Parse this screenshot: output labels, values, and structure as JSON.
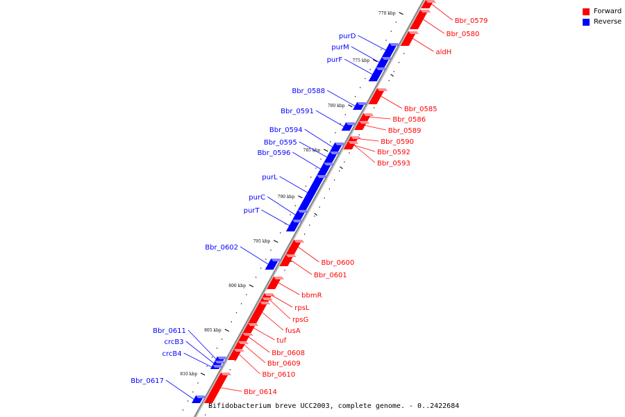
{
  "legend": {
    "items": [
      {
        "label": "Forward",
        "color": "#ff0000"
      },
      {
        "label": "Reverse",
        "color": "#0000ff"
      }
    ]
  },
  "colors": {
    "forward": "#ff0000",
    "reverse": "#0000ff",
    "backbone": "#8a8a8a"
  },
  "caption": "Bifidobacterium breve UCC2003, complete genome. - 0..2422684",
  "ticks": [
    {
      "label": "770 kbp",
      "kbp": 770
    },
    {
      "label": "775 kbp",
      "kbp": 775
    },
    {
      "label": "780 kbp",
      "kbp": 780
    },
    {
      "label": "785 kbp",
      "kbp": 785
    },
    {
      "label": "790 kbp",
      "kbp": 790
    },
    {
      "label": "795 kbp",
      "kbp": 795
    },
    {
      "label": "800 kbp",
      "kbp": 800
    },
    {
      "label": "805 kbp",
      "kbp": 805
    },
    {
      "label": "810 kbp",
      "kbp": 810
    }
  ],
  "forward_genes": [
    "Bbr_0579",
    "Bbr_0580",
    "aldH",
    "Bbr_0585",
    "Bbr_0586",
    "Bbr_0589",
    "Bbr_0590",
    "Bbr_0592",
    "Bbr_0593",
    "Bbr_0600",
    "Bbr_0601",
    "bbmR",
    "rpsL",
    "rpsG",
    "fusA",
    "tuf",
    "Bbr_0608",
    "Bbr_0609",
    "Bbr_0610",
    "Bbr_0614"
  ],
  "reverse_genes": [
    "purD",
    "purM",
    "purF",
    "Bbr_0588",
    "Bbr_0591",
    "Bbr_0594",
    "Bbr_0595",
    "Bbr_0596",
    "purL",
    "purC",
    "purT",
    "Bbr_0602",
    "Bbr_0611",
    "crcB3",
    "crcB4",
    "Bbr_0617"
  ]
}
